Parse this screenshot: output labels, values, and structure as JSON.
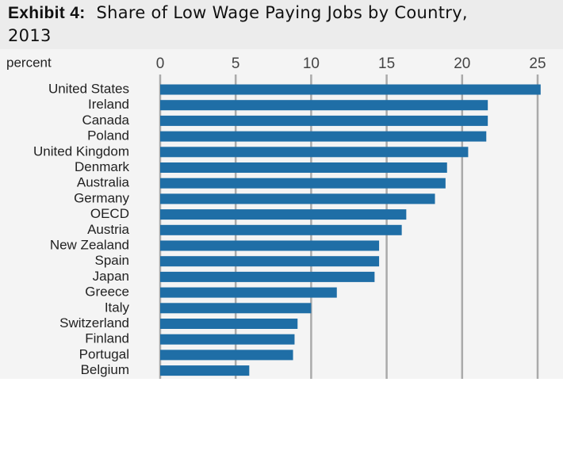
{
  "chart_data": {
    "type": "hbar",
    "title_prefix": "Exhibit 4:",
    "title": "Share of Low Wage Paying Jobs by Country, 2013",
    "xlabel": "percent",
    "categories": [
      "United States",
      "Ireland",
      "Canada",
      "Poland",
      "United Kingdom",
      "Denmark",
      "Australia",
      "Germany",
      "OECD",
      "Austria",
      "New Zealand",
      "Spain",
      "Japan",
      "Greece",
      "Italy",
      "Switzerland",
      "Finland",
      "Portugal",
      "Belgium"
    ],
    "values": [
      25.2,
      21.7,
      21.7,
      21.6,
      20.4,
      19.0,
      18.9,
      18.2,
      16.3,
      16.0,
      14.5,
      14.5,
      14.2,
      11.7,
      10.0,
      9.1,
      8.9,
      8.8,
      5.9
    ],
    "color": "#1f6ea6",
    "xlim": [
      0,
      25
    ],
    "xticks": [
      0,
      5,
      10,
      15,
      20,
      25
    ],
    "grid": true
  }
}
